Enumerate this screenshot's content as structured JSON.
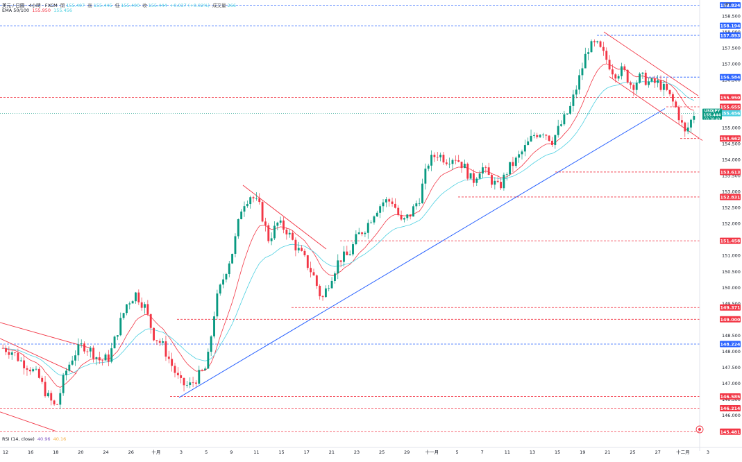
{
  "header": {
    "symbol_line": "美元 / 日圓 · 4小時 · FXCM",
    "open_label": "開",
    "open": "155.407",
    "high_label": "高",
    "high": "155.445",
    "low_label": "低",
    "low": "155.400",
    "close_label": "收",
    "close": "155.444",
    "change": "+0.037 (+0.02%)",
    "volume_label": "成交量",
    "volume": "266",
    "ema_label": "EMA 50/100",
    "ema_fast_value": "155.950",
    "ema_slow_value": "155.456"
  },
  "rsi_legend": {
    "label": "RSI (14, close)",
    "value_a": "40.96",
    "value_b": "40.16"
  },
  "currency_label": "JPY",
  "price_tag": {
    "symbol": "USDJPY",
    "price": "155.444",
    "countdown": "03:38:49"
  },
  "colors": {
    "up": "#089981",
    "down": "#f23645",
    "ema_fast": "#f23645",
    "ema_slow": "#4dd0e1",
    "trendline": "#2962ff",
    "red_level": "#f23645",
    "blue_level": "#2962ff"
  },
  "chart_data": {
    "type": "candlestick",
    "y_axis": {
      "range": [
        145.4,
        159.0
      ],
      "ticks": [
        "158.500",
        "158.000",
        "157.500",
        "157.000",
        "156.500",
        "156.000",
        "155.500",
        "155.000",
        "154.500",
        "154.000",
        "153.500",
        "153.000",
        "152.500",
        "152.000",
        "151.500",
        "151.000",
        "150.500",
        "150.000",
        "149.500",
        "149.000",
        "148.500",
        "148.000",
        "147.500",
        "147.000",
        "146.500",
        "146.000"
      ]
    },
    "x_axis": {
      "labels": [
        "12",
        "16",
        "18",
        "20",
        "24",
        "26",
        "十月",
        "3",
        "5",
        "9",
        "11",
        "15",
        "17",
        "21",
        "23",
        "25",
        "29",
        "十一月",
        "5",
        "7",
        "11",
        "13",
        "15",
        "19",
        "21",
        "25",
        "27",
        "十二月",
        "3"
      ]
    },
    "price_levels": [
      {
        "value": "158.834",
        "color": "blue"
      },
      {
        "value": "158.194",
        "color": "blue"
      },
      {
        "value": "157.893",
        "color": "blue"
      },
      {
        "value": "156.584",
        "color": "blue"
      },
      {
        "value": "155.950",
        "color": "red"
      },
      {
        "value": "155.655",
        "color": "red"
      },
      {
        "value": "155.456",
        "color": "cyan"
      },
      {
        "value": "154.662",
        "color": "red"
      },
      {
        "value": "153.613",
        "color": "red"
      },
      {
        "value": "152.831",
        "color": "red"
      },
      {
        "value": "151.458",
        "color": "red"
      },
      {
        "value": "149.371",
        "color": "red"
      },
      {
        "value": "149.000",
        "color": "red"
      },
      {
        "value": "148.224",
        "color": "blue"
      },
      {
        "value": "146.585",
        "color": "red"
      },
      {
        "value": "146.214",
        "color": "red"
      },
      {
        "value": "145.481",
        "color": "red"
      }
    ],
    "close_path": [
      148.1,
      148.0,
      147.7,
      147.5,
      147.2,
      146.6,
      146.2,
      147.3,
      147.9,
      148.2,
      148.0,
      147.7,
      147.8,
      148.7,
      149.5,
      149.8,
      149.4,
      148.5,
      148.2,
      147.6,
      147.0,
      146.9,
      147.2,
      147.5,
      149.5,
      150.4,
      151.2,
      152.6,
      152.9,
      152.5,
      151.5,
      152.0,
      151.8,
      151.3,
      150.9,
      150.4,
      149.6,
      150.3,
      150.9,
      151.0,
      151.6,
      151.9,
      152.4,
      152.7,
      152.7,
      152.0,
      152.3,
      152.8,
      153.9,
      154.2,
      154.0,
      154.1,
      153.8,
      153.3,
      153.8,
      153.4,
      153.1,
      153.7,
      154.0,
      154.4,
      154.8,
      154.9,
      154.6,
      155.1,
      155.6,
      156.5,
      157.5,
      157.6,
      157.2,
      156.7,
      156.8,
      156.3,
      156.6,
      156.4,
      156.4,
      156.1,
      155.6,
      154.8,
      155.444
    ]
  }
}
